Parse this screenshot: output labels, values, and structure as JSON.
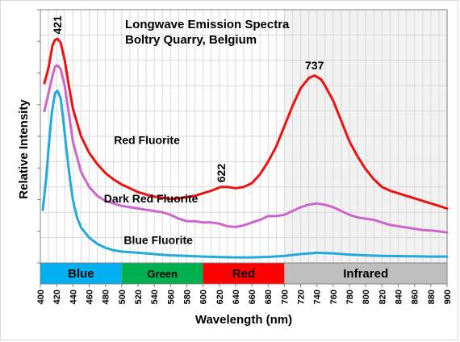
{
  "chart_data": {
    "type": "line",
    "title": "Longwave Emission Spectra",
    "subtitle": "Boltry Quarry, Belgium",
    "xlabel": "Wavelength (nm)",
    "ylabel": "Relative Intensity",
    "xlim": [
      400,
      900
    ],
    "ylim": [
      0,
      1
    ],
    "x_ticks": [
      400,
      420,
      440,
      460,
      480,
      500,
      520,
      540,
      560,
      580,
      600,
      620,
      640,
      660,
      680,
      700,
      720,
      740,
      760,
      780,
      800,
      820,
      840,
      860,
      880,
      900
    ],
    "grid": true,
    "legend": "none",
    "bands": [
      {
        "label": "Blue",
        "from": 400,
        "to": 500,
        "color": "#00b0f0",
        "text_color": "#000000"
      },
      {
        "label": "Green",
        "from": 500,
        "to": 600,
        "color": "#00b050",
        "text_color": "#000000"
      },
      {
        "label": "Red",
        "from": 600,
        "to": 700,
        "color": "#ff0000",
        "text_color": "#000000"
      },
      {
        "label": "Infrared",
        "from": 700,
        "to": 900,
        "color": "#bfbfbf",
        "text_color": "#000000"
      }
    ],
    "series": [
      {
        "name": "Red Fluorite",
        "color": "#ee1111",
        "x": [
          405,
          410,
          415,
          418,
          421,
          425,
          430,
          435,
          440,
          450,
          460,
          470,
          480,
          490,
          500,
          510,
          520,
          530,
          540,
          550,
          560,
          570,
          580,
          590,
          600,
          610,
          622,
          630,
          640,
          650,
          660,
          670,
          680,
          690,
          700,
          710,
          720,
          730,
          737,
          745,
          750,
          760,
          770,
          780,
          790,
          800,
          810,
          820,
          830,
          840,
          850,
          860,
          870,
          880,
          890,
          900
        ],
        "y": [
          0.71,
          0.77,
          0.86,
          0.88,
          0.885,
          0.87,
          0.8,
          0.7,
          0.61,
          0.5,
          0.435,
          0.39,
          0.355,
          0.33,
          0.31,
          0.295,
          0.28,
          0.27,
          0.262,
          0.258,
          0.253,
          0.255,
          0.26,
          0.265,
          0.275,
          0.285,
          0.3,
          0.3,
          0.295,
          0.3,
          0.315,
          0.35,
          0.4,
          0.46,
          0.54,
          0.62,
          0.69,
          0.73,
          0.74,
          0.725,
          0.7,
          0.64,
          0.56,
          0.48,
          0.42,
          0.37,
          0.33,
          0.3,
          0.285,
          0.275,
          0.265,
          0.255,
          0.245,
          0.235,
          0.225,
          0.215
        ]
      },
      {
        "name": "Dark Red Fluorite",
        "color": "#cc66cc",
        "x": [
          405,
          410,
          415,
          418,
          421,
          425,
          430,
          435,
          440,
          450,
          460,
          470,
          480,
          490,
          500,
          510,
          520,
          530,
          540,
          550,
          560,
          570,
          580,
          590,
          600,
          610,
          620,
          630,
          640,
          650,
          660,
          670,
          680,
          690,
          700,
          710,
          720,
          730,
          740,
          750,
          760,
          770,
          780,
          790,
          800,
          810,
          820,
          830,
          840,
          850,
          860,
          870,
          880,
          890,
          900
        ],
        "y": [
          0.6,
          0.67,
          0.74,
          0.775,
          0.78,
          0.765,
          0.7,
          0.59,
          0.48,
          0.36,
          0.3,
          0.265,
          0.245,
          0.235,
          0.225,
          0.22,
          0.215,
          0.21,
          0.205,
          0.2,
          0.19,
          0.175,
          0.165,
          0.165,
          0.16,
          0.16,
          0.155,
          0.145,
          0.142,
          0.148,
          0.16,
          0.17,
          0.185,
          0.185,
          0.19,
          0.205,
          0.22,
          0.23,
          0.235,
          0.23,
          0.22,
          0.205,
          0.19,
          0.18,
          0.175,
          0.17,
          0.16,
          0.15,
          0.145,
          0.14,
          0.135,
          0.13,
          0.128,
          0.125,
          0.12
        ]
      },
      {
        "name": "Blue Fluorite",
        "color": "#22aadd",
        "x": [
          403,
          407,
          410,
          414,
          418,
          421,
          425,
          428,
          432,
          436,
          440,
          445,
          450,
          460,
          470,
          480,
          490,
          500,
          520,
          540,
          560,
          580,
          600,
          620,
          640,
          660,
          680,
          700,
          720,
          740,
          760,
          780,
          800,
          820,
          840,
          860,
          880,
          900
        ],
        "y": [
          0.21,
          0.33,
          0.45,
          0.59,
          0.67,
          0.68,
          0.65,
          0.57,
          0.45,
          0.34,
          0.25,
          0.18,
          0.14,
          0.1,
          0.075,
          0.06,
          0.05,
          0.045,
          0.04,
          0.035,
          0.03,
          0.028,
          0.025,
          0.023,
          0.022,
          0.022,
          0.024,
          0.028,
          0.035,
          0.04,
          0.038,
          0.033,
          0.03,
          0.028,
          0.027,
          0.026,
          0.025,
          0.025
        ]
      }
    ],
    "annotations": [
      {
        "text": "421",
        "x": 421,
        "y": 0.89,
        "rotate": true
      },
      {
        "text": "622",
        "x": 622,
        "y": 0.305,
        "rotate": true
      },
      {
        "text": "737",
        "x": 737,
        "y": 0.745,
        "rotate": false
      },
      {
        "text": "Red Fluorite",
        "x": 531,
        "y": 0.45
      },
      {
        "text": "Dark Red Fluorite",
        "x": 536,
        "y": 0.22
      },
      {
        "text": "Blue Fluorite",
        "x": 545,
        "y": 0.055
      }
    ]
  }
}
